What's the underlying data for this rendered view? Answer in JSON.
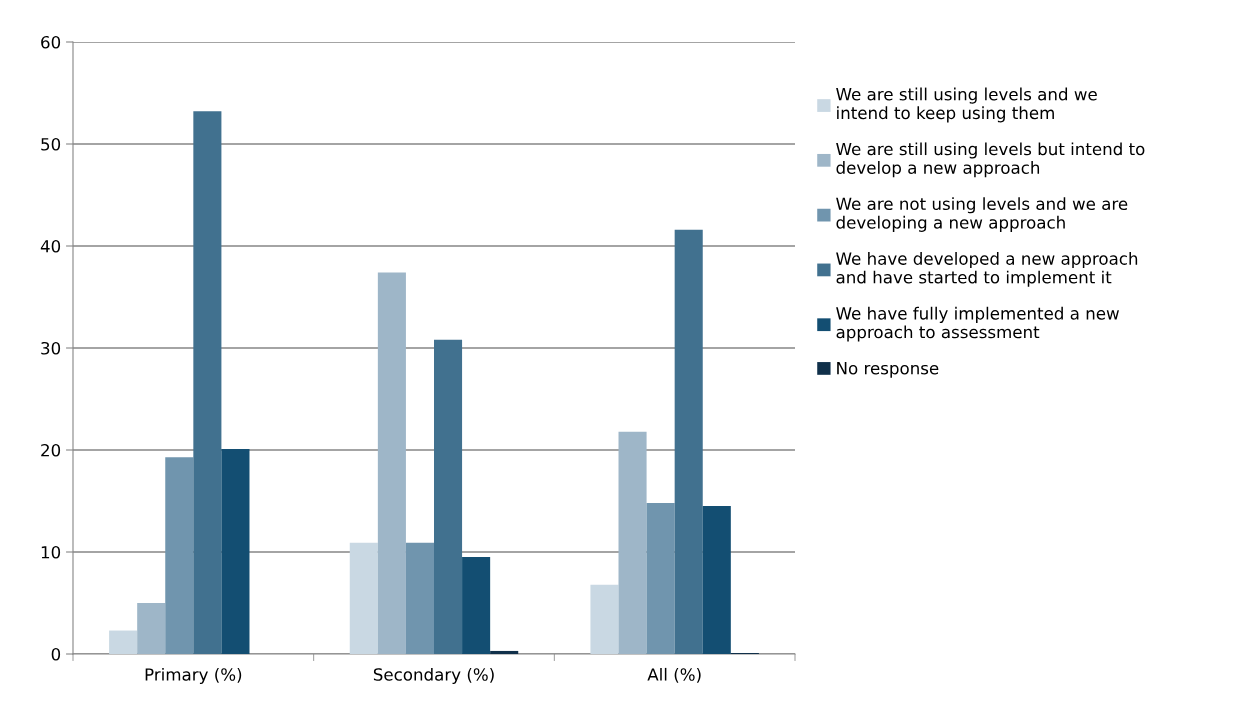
{
  "chart_data": {
    "type": "bar",
    "categories": [
      "Primary (%)",
      "Secondary (%)",
      "All (%)"
    ],
    "series": [
      {
        "name": "We are still using levels and we\nintend to keep using them",
        "color": "#c9d8e3",
        "values": [
          2.3,
          10.9,
          6.8
        ]
      },
      {
        "name": "We are still using levels but intend to\ndevelop a new approach",
        "color": "#9eb6c8",
        "values": [
          5.0,
          37.4,
          21.8
        ]
      },
      {
        "name": "We are not using levels and we are\ndeveloping a new approach",
        "color": "#7095ae",
        "values": [
          19.3,
          10.9,
          14.8
        ]
      },
      {
        "name": "We have developed a new approach\nand have started to implement it",
        "color": "#41718f",
        "values": [
          53.2,
          30.8,
          41.6
        ]
      },
      {
        "name": "We have fully implemented a new\napproach to assessment",
        "color": "#134e72",
        "values": [
          20.1,
          9.5,
          14.5
        ]
      },
      {
        "name": "No response",
        "color": "#10304a",
        "values": [
          0,
          0.3,
          0.1
        ]
      }
    ],
    "ylim": [
      0,
      60
    ],
    "yticks": [
      0,
      10,
      20,
      30,
      40,
      50,
      60
    ],
    "grid": "y",
    "legend": "right"
  }
}
